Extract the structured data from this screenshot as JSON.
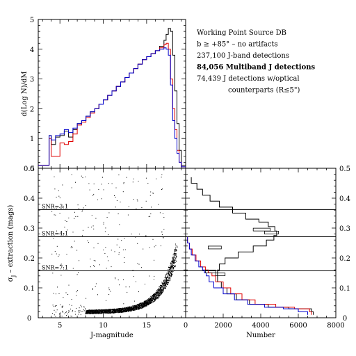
{
  "chart_data": [
    {
      "id": "histogram",
      "type": "line",
      "ylabel": "d(Log N)/dM",
      "xlim": [
        2.5,
        19.5
      ],
      "ylim": [
        0,
        5
      ],
      "yticks": [
        "0",
        "1",
        "2",
        "3",
        "4",
        "5"
      ],
      "legend": [
        {
          "text": "Working Point Source DB",
          "color": "#000000",
          "bold": false
        },
        {
          "text": "b ≥ +85° – no artifacts",
          "color": "#000000",
          "bold": false
        },
        {
          "text": "237,100 J-band detections",
          "color": "#000000",
          "bold": false
        },
        {
          "text": "84,056 Multiband J detections",
          "color": "#e00000",
          "bold": true
        },
        {
          "text": "74,439 J detections w/optical",
          "color": "#0000cc",
          "bold": false
        },
        {
          "text": "counterparts (R≤5\")",
          "color": "#0000cc",
          "bold": false
        }
      ],
      "series": [
        {
          "color": "#000000",
          "x": [
            2.5,
            3.5,
            3.75,
            4,
            4.5,
            5,
            5.5,
            6,
            6.5,
            7,
            7.5,
            8,
            8.5,
            9,
            9.5,
            10,
            10.5,
            11,
            11.5,
            12,
            12.5,
            13,
            13.5,
            14,
            14.5,
            15,
            15.5,
            16,
            16.5,
            17,
            17.25,
            17.5,
            17.75,
            18,
            18.25,
            18.5,
            18.75,
            19
          ],
          "y": [
            0.1,
            0.1,
            1.1,
            0.8,
            1.05,
            1.1,
            1.25,
            1.05,
            1.3,
            1.5,
            1.6,
            1.75,
            1.9,
            2.0,
            2.15,
            2.3,
            2.45,
            2.6,
            2.75,
            2.9,
            3.05,
            3.2,
            3.35,
            3.5,
            3.65,
            3.75,
            3.85,
            3.95,
            4.1,
            4.3,
            4.5,
            4.7,
            4.6,
            3.8,
            2.6,
            1.5,
            0.6,
            0.1
          ]
        },
        {
          "color": "#e00000",
          "x": [
            2.5,
            3.5,
            3.75,
            4,
            4.5,
            5,
            5.5,
            6,
            6.5,
            7,
            7.5,
            8,
            8.5,
            9,
            9.5,
            10,
            10.5,
            11,
            11.5,
            12,
            12.5,
            13,
            13.5,
            14,
            14.5,
            15,
            15.5,
            16,
            16.5,
            17,
            17.25,
            17.5,
            17.75,
            18,
            18.25,
            18.5,
            18.75,
            19
          ],
          "y": [
            0.1,
            0.1,
            1.0,
            0.4,
            0.4,
            0.85,
            0.8,
            0.9,
            1.15,
            1.45,
            1.55,
            1.7,
            1.85,
            2.0,
            2.15,
            2.3,
            2.45,
            2.6,
            2.75,
            2.9,
            3.05,
            3.2,
            3.35,
            3.5,
            3.65,
            3.75,
            3.85,
            3.95,
            4.05,
            4.15,
            4.2,
            4.0,
            3.0,
            2.0,
            1.3,
            0.6,
            0.2,
            0.05
          ]
        },
        {
          "color": "#0000cc",
          "x": [
            2.5,
            3.5,
            3.75,
            4,
            4.5,
            5,
            5.5,
            6,
            6.5,
            7,
            7.5,
            8,
            8.5,
            9,
            9.5,
            10,
            10.5,
            11,
            11.5,
            12,
            12.5,
            13,
            13.5,
            14,
            14.5,
            15,
            15.5,
            16,
            16.5,
            17,
            17.25,
            17.5,
            17.75,
            18,
            18.25,
            18.5,
            18.75,
            19
          ],
          "y": [
            0.1,
            0.1,
            1.1,
            0.95,
            1.1,
            1.15,
            1.3,
            1.2,
            1.35,
            1.5,
            1.6,
            1.75,
            1.9,
            2.0,
            2.15,
            2.3,
            2.45,
            2.6,
            2.75,
            2.9,
            3.05,
            3.2,
            3.35,
            3.5,
            3.65,
            3.75,
            3.85,
            3.95,
            4.0,
            4.05,
            4.0,
            3.8,
            2.8,
            1.6,
            1.0,
            0.5,
            0.2,
            0.05
          ]
        }
      ]
    },
    {
      "id": "scatter",
      "type": "scatter",
      "xlabel": "J-magnitude",
      "ylabel": "σJ – extraction (mags)",
      "xlim": [
        2.5,
        19.5
      ],
      "ylim": [
        0,
        0.5
      ],
      "xticks": [
        "5",
        "10",
        "15"
      ],
      "yticks": [
        "0",
        "0.1",
        "0.2",
        "0.3",
        "0.4",
        "0.5"
      ],
      "hlines": [
        {
          "y": 0.362,
          "label": "SNR=3:1"
        },
        {
          "y": 0.271,
          "label": "SNR=4:1"
        },
        {
          "y": 0.157,
          "label": "SNR=7:1"
        }
      ]
    },
    {
      "id": "number",
      "type": "line",
      "xlabel": "Number",
      "xlim": [
        0,
        8000
      ],
      "ylim": [
        0,
        0.5
      ],
      "xticks": [
        "0",
        "2000",
        "4000",
        "6000",
        "8000"
      ],
      "yticks": [
        "0",
        "0.1",
        "0.2",
        "0.3",
        "0.4",
        "0.5"
      ],
      "series": [
        {
          "color": "#000000",
          "y": [
            0.47,
            0.45,
            0.43,
            0.41,
            0.39,
            0.37,
            0.35,
            0.33,
            0.32,
            0.305,
            0.29,
            0.275,
            0.26,
            0.24,
            0.22,
            0.2,
            0.18,
            0.16,
            0.14,
            0.12,
            0.1,
            0.08,
            0.06,
            0.045,
            0.035,
            0.03,
            0.02
          ],
          "x": [
            300,
            600,
            900,
            1300,
            1800,
            2500,
            3200,
            3900,
            4400,
            4750,
            4850,
            4700,
            4300,
            3600,
            2800,
            2100,
            1800,
            1700,
            1700,
            1900,
            2200,
            2700,
            3400,
            4400,
            5500,
            6700,
            6800
          ]
        },
        {
          "color": "#e00000",
          "y": [
            0.27,
            0.25,
            0.23,
            0.21,
            0.19,
            0.17,
            0.16,
            0.15,
            0.14,
            0.12,
            0.1,
            0.08,
            0.06,
            0.045,
            0.035,
            0.03,
            0.02
          ],
          "x": [
            100,
            200,
            350,
            550,
            800,
            1050,
            1200,
            1400,
            1600,
            2000,
            2400,
            3000,
            3700,
            4800,
            5800,
            6600,
            6700
          ]
        },
        {
          "color": "#0000cc",
          "y": [
            0.27,
            0.25,
            0.23,
            0.21,
            0.19,
            0.17,
            0.16,
            0.15,
            0.14,
            0.12,
            0.1,
            0.08,
            0.06,
            0.045,
            0.035,
            0.03,
            0.02
          ],
          "x": [
            100,
            200,
            300,
            500,
            700,
            900,
            1000,
            1100,
            1250,
            1500,
            2000,
            2600,
            3300,
            4200,
            5200,
            6000,
            6500
          ]
        }
      ],
      "markers": [
        {
          "y": 0.295,
          "x1": 3600,
          "x2": 4500
        },
        {
          "y": 0.285,
          "x1": 4200,
          "x2": 4950
        },
        {
          "y": 0.235,
          "x1": 1200,
          "x2": 1900
        },
        {
          "y": 0.155,
          "x1": 1050,
          "x2": 1600
        },
        {
          "y": 0.145,
          "x1": 1600,
          "x2": 2100
        }
      ]
    }
  ]
}
